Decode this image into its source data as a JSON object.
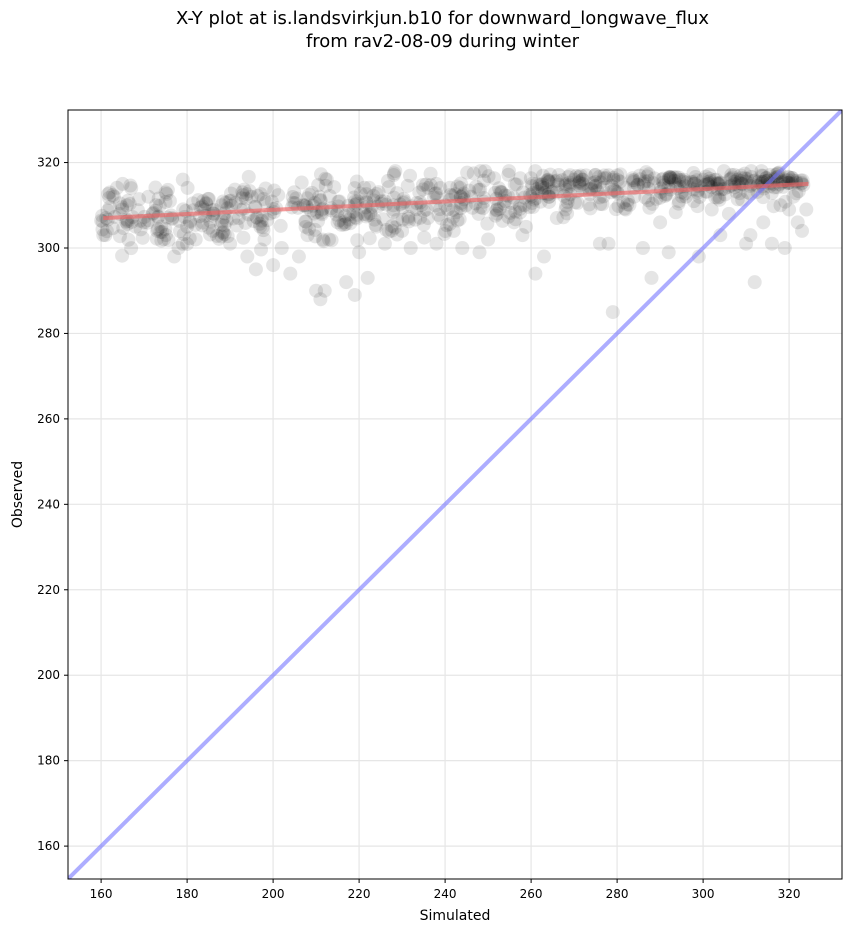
{
  "chart_data": {
    "type": "scatter",
    "title_line1": "X-Y plot at is.landsvirkjun.b10 for downward_longwave_flux",
    "title_line2": "from rav2-08-09 during winter",
    "xlabel": "Simulated",
    "ylabel": "Observed",
    "xlim": [
      152.3,
      332.3
    ],
    "ylim": [
      152.3,
      332.3
    ],
    "xticks": [
      160,
      180,
      200,
      220,
      240,
      260,
      280,
      300,
      320
    ],
    "yticks": [
      160,
      180,
      200,
      220,
      240,
      260,
      280,
      300,
      320
    ],
    "grid": true,
    "one_to_one_line": {
      "from": [
        152.3,
        152.3
      ],
      "to": [
        332.3,
        332.3
      ],
      "color": "#7777ff"
    },
    "regression_line": {
      "from": [
        160.5,
        307.0
      ],
      "to": [
        324.5,
        315.0
      ],
      "color": "#ee6666"
    },
    "point_color": "#000000",
    "point_alpha": 0.1,
    "dense_band": {
      "x_range": [
        160,
        324
      ],
      "y_range": [
        298,
        318
      ]
    },
    "points": [
      [
        160.5,
        303
      ],
      [
        161,
        303
      ],
      [
        162,
        313
      ],
      [
        163,
        312
      ],
      [
        165,
        315
      ],
      [
        166,
        310
      ],
      [
        167,
        314
      ],
      [
        168,
        305
      ],
      [
        170,
        306
      ],
      [
        171,
        312
      ],
      [
        172,
        308
      ],
      [
        174,
        305
      ],
      [
        175,
        313
      ],
      [
        176,
        311
      ],
      [
        177,
        298
      ],
      [
        178,
        300
      ],
      [
        179,
        316
      ],
      [
        180,
        305
      ],
      [
        182,
        302
      ],
      [
        184,
        309
      ],
      [
        186,
        304
      ],
      [
        188,
        310
      ],
      [
        190,
        301
      ],
      [
        192,
        307
      ],
      [
        194,
        298
      ],
      [
        195,
        312
      ],
      [
        196,
        295
      ],
      [
        197,
        305
      ],
      [
        198,
        302
      ],
      [
        200,
        296
      ],
      [
        202,
        300
      ],
      [
        204,
        294
      ],
      [
        206,
        298
      ],
      [
        208,
        303
      ],
      [
        210,
        290
      ],
      [
        211,
        288
      ],
      [
        212,
        290
      ],
      [
        213,
        302
      ],
      [
        215,
        306
      ],
      [
        217,
        292
      ],
      [
        219,
        289
      ],
      [
        220,
        299
      ],
      [
        222,
        293
      ],
      [
        224,
        305
      ],
      [
        226,
        301
      ],
      [
        228,
        309
      ],
      [
        230,
        304
      ],
      [
        232,
        300
      ],
      [
        234,
        313
      ],
      [
        236,
        307
      ],
      [
        238,
        301
      ],
      [
        240,
        310
      ],
      [
        242,
        304
      ],
      [
        244,
        300
      ],
      [
        246,
        312
      ],
      [
        248,
        299
      ],
      [
        250,
        302
      ],
      [
        252,
        309
      ],
      [
        254,
        311
      ],
      [
        256,
        306
      ],
      [
        258,
        303
      ],
      [
        260,
        312
      ],
      [
        261,
        294
      ],
      [
        263,
        298
      ],
      [
        264,
        316
      ],
      [
        266,
        313
      ],
      [
        268,
        309
      ],
      [
        270,
        316
      ],
      [
        272,
        316
      ],
      [
        274,
        314
      ],
      [
        276,
        301
      ],
      [
        277,
        317
      ],
      [
        278,
        301
      ],
      [
        279,
        285
      ],
      [
        280,
        317
      ],
      [
        282,
        309
      ],
      [
        284,
        312
      ],
      [
        286,
        300
      ],
      [
        288,
        293
      ],
      [
        290,
        306
      ],
      [
        292,
        299
      ],
      [
        294,
        314
      ],
      [
        296,
        312
      ],
      [
        298,
        315
      ],
      [
        299,
        298
      ],
      [
        300,
        316
      ],
      [
        302,
        309
      ],
      [
        304,
        303
      ],
      [
        306,
        308
      ],
      [
        308,
        316
      ],
      [
        310,
        301
      ],
      [
        311,
        303
      ],
      [
        312,
        292
      ],
      [
        314,
        306
      ],
      [
        316,
        301
      ],
      [
        318,
        310
      ],
      [
        319,
        300
      ],
      [
        320,
        309
      ],
      [
        321,
        312
      ],
      [
        322,
        306
      ],
      [
        323,
        304
      ],
      [
        324,
        309
      ]
    ]
  }
}
